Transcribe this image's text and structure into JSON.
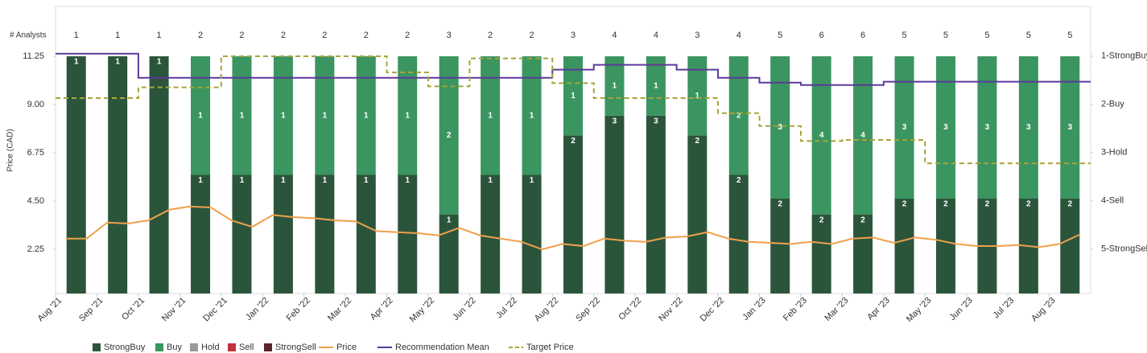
{
  "chart_data": {
    "type": "bar",
    "y_label": "Price (CAD)",
    "analysts_label": "# Analysts",
    "categories": [
      "Aug '21",
      "Sep '21",
      "Oct '21",
      "Nov '21",
      "Dec '21",
      "Jan '22",
      "Feb '22",
      "Mar '22",
      "Apr '22",
      "May '22",
      "Jun '22",
      "Jul '22",
      "Aug '22",
      "Sep '22",
      "Oct '22",
      "Nov '22",
      "Dec '22",
      "Jan '23",
      "Feb '23",
      "Mar '23",
      "Apr '23",
      "May '23",
      "Jun '23",
      "Jul '23",
      "Aug '23"
    ],
    "analysts": [
      1,
      1,
      1,
      2,
      2,
      2,
      2,
      2,
      2,
      3,
      2,
      2,
      3,
      4,
      4,
      3,
      4,
      5,
      6,
      6,
      5,
      5,
      5,
      5,
      5
    ],
    "series": [
      {
        "name": "StrongBuy",
        "color": "#2b553b",
        "values": [
          1,
          1,
          1,
          1,
          1,
          1,
          1,
          1,
          1,
          1,
          1,
          1,
          2,
          3,
          3,
          2,
          2,
          2,
          2,
          2,
          2,
          2,
          2,
          2,
          2
        ]
      },
      {
        "name": "Buy",
        "color": "#3b9560",
        "values": [
          0,
          0,
          0,
          1,
          1,
          1,
          1,
          1,
          1,
          2,
          1,
          1,
          1,
          1,
          1,
          1,
          2,
          3,
          4,
          4,
          3,
          3,
          3,
          3,
          3
        ]
      },
      {
        "name": "Hold",
        "color": "#999999",
        "values": [
          0,
          0,
          0,
          0,
          0,
          0,
          0,
          0,
          0,
          0,
          0,
          0,
          0,
          0,
          0,
          0,
          0,
          0,
          0,
          0,
          0,
          0,
          0,
          0,
          0
        ]
      },
      {
        "name": "Sell",
        "color": "#c0303e",
        "values": [
          0,
          0,
          0,
          0,
          0,
          0,
          0,
          0,
          0,
          0,
          0,
          0,
          0,
          0,
          0,
          0,
          0,
          0,
          0,
          0,
          0,
          0,
          0,
          0,
          0
        ]
      },
      {
        "name": "StrongSell",
        "color": "#5a2330",
        "values": [
          0,
          0,
          0,
          0,
          0,
          0,
          0,
          0,
          0,
          0,
          0,
          0,
          0,
          0,
          0,
          0,
          0,
          0,
          0,
          0,
          0,
          0,
          0,
          0,
          0
        ]
      }
    ],
    "lines": [
      {
        "name": "Price",
        "color": "#f0a04b",
        "values": [
          2.75,
          2.75,
          3.5,
          3.45,
          3.6,
          4.1,
          4.25,
          4.2,
          3.6,
          3.3,
          3.85,
          3.75,
          3.7,
          3.6,
          3.55,
          3.1,
          3.05,
          3.0,
          2.9,
          3.25,
          2.9,
          2.75,
          2.6,
          2.25,
          2.5,
          2.4,
          2.75,
          2.65,
          2.6,
          2.8,
          2.85,
          3.05,
          2.75,
          2.6,
          2.55,
          2.5,
          2.6,
          2.5,
          2.75,
          2.8,
          2.55,
          2.8,
          2.7,
          2.5,
          2.4,
          2.4,
          2.45,
          2.35,
          2.5,
          2.95
        ]
      },
      {
        "name": "Recommendation Mean",
        "color": "#5b3a9a",
        "axis": "y2",
        "step": true,
        "values": [
          0.95,
          0.95,
          1.45,
          1.45,
          1.45,
          1.45,
          1.45,
          1.45,
          1.45,
          1.45,
          1.45,
          1.45,
          1.28,
          1.18,
          1.18,
          1.28,
          1.45,
          1.55,
          1.6,
          1.6,
          1.53,
          1.53,
          1.53,
          1.53,
          1.53
        ]
      },
      {
        "name": "Target Price",
        "color": "#a8a43a",
        "dashed": true,
        "step": true,
        "values": [
          9.3,
          9.3,
          9.8,
          9.8,
          11.25,
          11.25,
          11.25,
          11.25,
          10.5,
          9.85,
          11.15,
          11.15,
          10.0,
          9.3,
          9.3,
          9.3,
          8.6,
          8.0,
          7.3,
          7.35,
          7.35,
          6.26,
          6.26,
          6.26,
          6.26
        ]
      }
    ],
    "ylim": [
      0.19,
      13.575
    ],
    "yticks": [
      2.25,
      {
        "value": 4.5,
        "label": "4.50"
      },
      6.75,
      {
        "value": 9,
        "label": "9.00"
      },
      11.25
    ],
    "y2lim": [
      5.92,
      -0.03
    ],
    "y2ticks": [
      {
        "value": 1,
        "label": "1-StrongBuy"
      },
      {
        "value": 2,
        "label": "2-Buy"
      },
      {
        "value": 3,
        "label": "3-Hold"
      },
      {
        "value": 4,
        "label": "4-Sell"
      },
      {
        "value": 5,
        "label": "5-StrongSell"
      }
    ],
    "legend": "bottom"
  }
}
